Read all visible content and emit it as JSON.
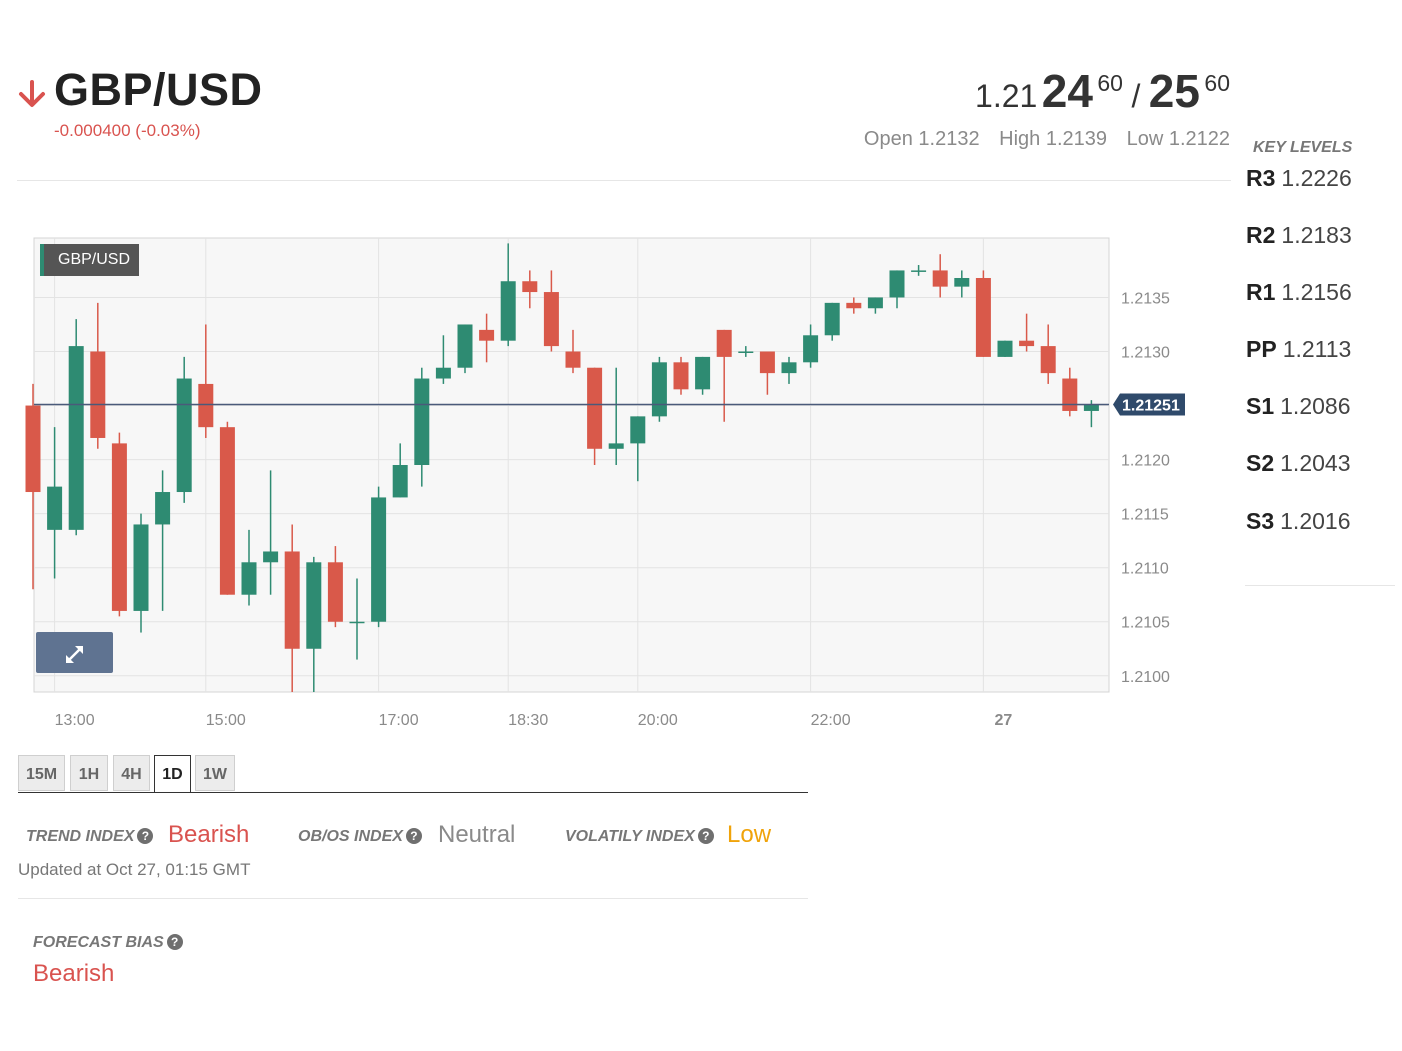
{
  "header": {
    "pair": "GBP/USD",
    "change": "-0.000400 (-0.03%)",
    "direction_icon": "arrow-down-icon",
    "bid_base": "1.21",
    "bid_big": "24",
    "bid_sup": "60",
    "separator": "/",
    "ask_big": "25",
    "ask_sup": "60",
    "open": "Open 1.2132",
    "high": "High 1.2139",
    "low": "Low 1.2122"
  },
  "key_levels": {
    "title": "KEY LEVELS",
    "levels": [
      {
        "name": "R3",
        "value": "1.2226"
      },
      {
        "name": "R2",
        "value": "1.2183"
      },
      {
        "name": "R1",
        "value": "1.2156"
      },
      {
        "name": "PP",
        "value": "1.2113"
      },
      {
        "name": "S1",
        "value": "1.2086"
      },
      {
        "name": "S2",
        "value": "1.2043"
      },
      {
        "name": "S3",
        "value": "1.2016"
      }
    ]
  },
  "chart_badge": "GBP/USD",
  "expand_icon": "expand-icon",
  "chart_data": {
    "type": "candlestick",
    "title": "GBP/USD",
    "ylim": [
      1.20985,
      1.21405
    ],
    "yticks": [
      1.21,
      1.2105,
      1.211,
      1.2115,
      1.212,
      1.2125,
      1.213,
      1.2135
    ],
    "ytick_labels": [
      "1.2100",
      "1.2105",
      "1.2110",
      "1.2115",
      "1.2120",
      "",
      "1.2130",
      "1.2135"
    ],
    "x_ticks": [
      {
        "index": 1,
        "label": "13:00",
        "bold": false
      },
      {
        "index": 8,
        "label": "15:00",
        "bold": false
      },
      {
        "index": 16,
        "label": "17:00",
        "bold": false
      },
      {
        "index": 22,
        "label": "18:30",
        "bold": false
      },
      {
        "index": 28,
        "label": "20:00",
        "bold": false
      },
      {
        "index": 36,
        "label": "22:00",
        "bold": false
      },
      {
        "index": 44,
        "label": "27",
        "bold": true
      }
    ],
    "current_price": 1.21251,
    "current_price_label": "1.21251",
    "colors": {
      "up": "#2e8b72",
      "down": "#d9594a",
      "price_line": "#4a5a7a",
      "grid": "#e3e3e3"
    },
    "candles": [
      {
        "o": 1.2125,
        "h": 1.2127,
        "l": 1.2108,
        "c": 1.2117
      },
      {
        "o": 1.21135,
        "h": 1.2123,
        "l": 1.2109,
        "c": 1.21175
      },
      {
        "o": 1.21135,
        "h": 1.2133,
        "l": 1.2113,
        "c": 1.21305
      },
      {
        "o": 1.213,
        "h": 1.21345,
        "l": 1.2121,
        "c": 1.2122
      },
      {
        "o": 1.21215,
        "h": 1.21225,
        "l": 1.21055,
        "c": 1.2106
      },
      {
        "o": 1.2106,
        "h": 1.2115,
        "l": 1.2104,
        "c": 1.2114
      },
      {
        "o": 1.2114,
        "h": 1.2119,
        "l": 1.2106,
        "c": 1.2117
      },
      {
        "o": 1.2117,
        "h": 1.21295,
        "l": 1.2116,
        "c": 1.21275
      },
      {
        "o": 1.2127,
        "h": 1.21325,
        "l": 1.2122,
        "c": 1.2123
      },
      {
        "o": 1.2123,
        "h": 1.21235,
        "l": 1.21075,
        "c": 1.21075
      },
      {
        "o": 1.21075,
        "h": 1.21135,
        "l": 1.21065,
        "c": 1.21105
      },
      {
        "o": 1.21105,
        "h": 1.2119,
        "l": 1.21075,
        "c": 1.21115
      },
      {
        "o": 1.21115,
        "h": 1.2114,
        "l": 1.20985,
        "c": 1.21025
      },
      {
        "o": 1.21025,
        "h": 1.2111,
        "l": 1.20985,
        "c": 1.21105
      },
      {
        "o": 1.21105,
        "h": 1.2112,
        "l": 1.21045,
        "c": 1.2105
      },
      {
        "o": 1.2105,
        "h": 1.2109,
        "l": 1.21015,
        "c": 1.2105
      },
      {
        "o": 1.2105,
        "h": 1.21175,
        "l": 1.21045,
        "c": 1.21165
      },
      {
        "o": 1.21165,
        "h": 1.21215,
        "l": 1.21165,
        "c": 1.21195
      },
      {
        "o": 1.21195,
        "h": 1.21285,
        "l": 1.21175,
        "c": 1.21275
      },
      {
        "o": 1.21275,
        "h": 1.21315,
        "l": 1.2127,
        "c": 1.21285
      },
      {
        "o": 1.21285,
        "h": 1.21325,
        "l": 1.2128,
        "c": 1.21325
      },
      {
        "o": 1.2132,
        "h": 1.21335,
        "l": 1.2129,
        "c": 1.2131
      },
      {
        "o": 1.2131,
        "h": 1.214,
        "l": 1.21305,
        "c": 1.21365
      },
      {
        "o": 1.21365,
        "h": 1.21375,
        "l": 1.2134,
        "c": 1.21355
      },
      {
        "o": 1.21355,
        "h": 1.21375,
        "l": 1.213,
        "c": 1.21305
      },
      {
        "o": 1.213,
        "h": 1.2132,
        "l": 1.2128,
        "c": 1.21285
      },
      {
        "o": 1.21285,
        "h": 1.21285,
        "l": 1.21195,
        "c": 1.2121
      },
      {
        "o": 1.2121,
        "h": 1.21285,
        "l": 1.21195,
        "c": 1.21215
      },
      {
        "o": 1.21215,
        "h": 1.2124,
        "l": 1.2118,
        "c": 1.2124
      },
      {
        "o": 1.2124,
        "h": 1.21295,
        "l": 1.21235,
        "c": 1.2129
      },
      {
        "o": 1.2129,
        "h": 1.21295,
        "l": 1.2126,
        "c": 1.21265
      },
      {
        "o": 1.21265,
        "h": 1.21295,
        "l": 1.2126,
        "c": 1.21295
      },
      {
        "o": 1.2132,
        "h": 1.2132,
        "l": 1.21235,
        "c": 1.21295
      },
      {
        "o": 1.213,
        "h": 1.21305,
        "l": 1.21295,
        "c": 1.213
      },
      {
        "o": 1.213,
        "h": 1.213,
        "l": 1.2126,
        "c": 1.2128
      },
      {
        "o": 1.2128,
        "h": 1.21295,
        "l": 1.2127,
        "c": 1.2129
      },
      {
        "o": 1.2129,
        "h": 1.21325,
        "l": 1.21285,
        "c": 1.21315
      },
      {
        "o": 1.21315,
        "h": 1.21345,
        "l": 1.2131,
        "c": 1.21345
      },
      {
        "o": 1.21345,
        "h": 1.2135,
        "l": 1.21335,
        "c": 1.2134
      },
      {
        "o": 1.2134,
        "h": 1.2135,
        "l": 1.21335,
        "c": 1.2135
      },
      {
        "o": 1.2135,
        "h": 1.21375,
        "l": 1.2134,
        "c": 1.21375
      },
      {
        "o": 1.21375,
        "h": 1.2138,
        "l": 1.2137,
        "c": 1.21375
      },
      {
        "o": 1.21375,
        "h": 1.2139,
        "l": 1.2135,
        "c": 1.2136
      },
      {
        "o": 1.2136,
        "h": 1.21375,
        "l": 1.2135,
        "c": 1.21368
      },
      {
        "o": 1.21368,
        "h": 1.21375,
        "l": 1.21295,
        "c": 1.21295
      },
      {
        "o": 1.21295,
        "h": 1.2131,
        "l": 1.21295,
        "c": 1.2131
      },
      {
        "o": 1.2131,
        "h": 1.21335,
        "l": 1.213,
        "c": 1.21305
      },
      {
        "o": 1.21305,
        "h": 1.21325,
        "l": 1.2127,
        "c": 1.2128
      },
      {
        "o": 1.21275,
        "h": 1.21285,
        "l": 1.2124,
        "c": 1.21245
      },
      {
        "o": 1.21245,
        "h": 1.21255,
        "l": 1.2123,
        "c": 1.21251
      }
    ]
  },
  "timeframes": {
    "tabs": [
      "15M",
      "1H",
      "4H",
      "1D",
      "1W"
    ],
    "active": "1D"
  },
  "indicators": [
    {
      "label": "TREND INDEX",
      "value": "Bearish",
      "color": "#d9534f"
    },
    {
      "label": "OB/OS INDEX",
      "value": "Neutral",
      "color": "#8a8a8a"
    },
    {
      "label": "VOLATILY INDEX",
      "value": "Low",
      "color": "#f0a30a"
    }
  ],
  "updated": "Updated at Oct 27, 01:15 GMT",
  "forecast": {
    "label": "FORECAST BIAS",
    "value": "Bearish",
    "color": "#d9534f"
  }
}
